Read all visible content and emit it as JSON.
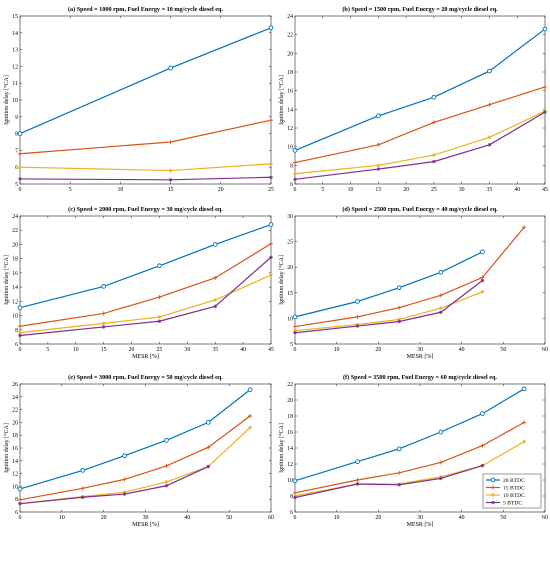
{
  "colors": {
    "20 BTDC": "#0072BD",
    "15 BTDC": "#D95319",
    "10 BTDC": "#EDB120",
    "5 BTDC": "#7E2F8E"
  },
  "legend": {
    "placement": "bottom-right of panel (f)",
    "entries": [
      "20 BTDC",
      "15 BTDC",
      "10 BTDC",
      "5 BTDC"
    ]
  },
  "chart_data": [
    {
      "type": "line",
      "title": "(a) Speed = 1000 rpm, Fuel Energy = 10 mg/cycle diesel eq.",
      "xlabel": "",
      "ylabel": "Ignition delay [°CA]",
      "xlim": [
        0,
        25
      ],
      "ylim": [
        5,
        15
      ],
      "xticks": [
        0,
        5,
        10,
        15,
        20,
        25
      ],
      "yticks": [
        5,
        6,
        7,
        8,
        9,
        10,
        11,
        12,
        13,
        14,
        15
      ],
      "series": [
        {
          "name": "20 BTDC",
          "x": [
            0,
            15,
            25
          ],
          "y": [
            8.0,
            11.9,
            14.3
          ]
        },
        {
          "name": "15 BTDC",
          "x": [
            0,
            15,
            25
          ],
          "y": [
            6.8,
            7.5,
            8.8
          ]
        },
        {
          "name": "10 BTDC",
          "x": [
            0,
            15,
            25
          ],
          "y": [
            6.0,
            5.8,
            6.2
          ]
        },
        {
          "name": "5 BTDC",
          "x": [
            0,
            15,
            25
          ],
          "y": [
            5.3,
            5.25,
            5.4
          ]
        }
      ]
    },
    {
      "type": "line",
      "title": "(b) Speed = 1500 rpm, Fuel Energy = 20 mg/cycle diesel eq.",
      "xlabel": "",
      "ylabel": "Ignition delay [°CA]",
      "xlim": [
        0,
        45
      ],
      "ylim": [
        6,
        24
      ],
      "xticks": [
        0,
        5,
        10,
        15,
        20,
        25,
        30,
        35,
        40,
        45
      ],
      "yticks": [
        6,
        8,
        10,
        12,
        14,
        16,
        18,
        20,
        22,
        24
      ],
      "series": [
        {
          "name": "20 BTDC",
          "x": [
            0,
            15,
            25,
            35,
            45
          ],
          "y": [
            9.6,
            13.3,
            15.3,
            18.1,
            22.6
          ]
        },
        {
          "name": "15 BTDC",
          "x": [
            0,
            15,
            25,
            35,
            45
          ],
          "y": [
            8.3,
            10.2,
            12.6,
            14.5,
            16.4
          ]
        },
        {
          "name": "10 BTDC",
          "x": [
            0,
            15,
            25,
            35,
            45
          ],
          "y": [
            7.1,
            8.0,
            9.1,
            11.0,
            13.8
          ]
        },
        {
          "name": "5 BTDC",
          "x": [
            0,
            15,
            25,
            35,
            45
          ],
          "y": [
            6.5,
            7.6,
            8.4,
            10.2,
            13.7
          ]
        }
      ]
    },
    {
      "type": "line",
      "title": "(c) Speed = 2000 rpm, Fuel Energy = 30 mg/cycle diesel eq.",
      "xlabel": "MESR [%]",
      "ylabel": "Ignition delay [°CA]",
      "xlim": [
        0,
        45
      ],
      "ylim": [
        6,
        24
      ],
      "xticks": [
        0,
        5,
        10,
        15,
        20,
        25,
        30,
        35,
        40,
        45
      ],
      "yticks": [
        6,
        8,
        10,
        12,
        14,
        16,
        18,
        20,
        22,
        24
      ],
      "series": [
        {
          "name": "20 BTDC",
          "x": [
            0,
            15,
            25,
            35,
            45
          ],
          "y": [
            11.1,
            14.1,
            17.0,
            20.0,
            22.8
          ]
        },
        {
          "name": "15 BTDC",
          "x": [
            0,
            15,
            25,
            35,
            45
          ],
          "y": [
            8.5,
            10.3,
            12.6,
            15.3,
            20.1
          ]
        },
        {
          "name": "10 BTDC",
          "x": [
            0,
            15,
            25,
            35,
            45
          ],
          "y": [
            7.6,
            8.9,
            9.8,
            12.2,
            15.7
          ]
        },
        {
          "name": "5 BTDC",
          "x": [
            0,
            15,
            25,
            35,
            45
          ],
          "y": [
            7.2,
            8.4,
            9.2,
            11.3,
            18.2
          ]
        }
      ]
    },
    {
      "type": "line",
      "title": "(d) Speed = 2500 rpm, Fuel Energy = 40 mg/cycle diesel eq.",
      "xlabel": "MESR [%]",
      "ylabel": "Ignition delay [°CA]",
      "xlim": [
        0,
        60
      ],
      "ylim": [
        5,
        30
      ],
      "xticks": [
        0,
        10,
        20,
        30,
        40,
        50,
        60
      ],
      "yticks": [
        5,
        10,
        15,
        20,
        25,
        30
      ],
      "series": [
        {
          "name": "20 BTDC",
          "x": [
            0,
            15,
            25,
            35,
            45
          ],
          "y": [
            10.3,
            13.3,
            16.0,
            19.0,
            23.0
          ]
        },
        {
          "name": "15 BTDC",
          "x": [
            0,
            15,
            25,
            35,
            45,
            55
          ],
          "y": [
            8.4,
            10.3,
            12.1,
            14.5,
            18.0,
            27.8
          ]
        },
        {
          "name": "10 BTDC",
          "x": [
            0,
            15,
            25,
            35,
            45
          ],
          "y": [
            7.6,
            8.8,
            9.8,
            12.0,
            15.2
          ]
        },
        {
          "name": "5 BTDC",
          "x": [
            0,
            15,
            25,
            35,
            45
          ],
          "y": [
            7.2,
            8.5,
            9.4,
            11.2,
            17.4
          ]
        }
      ]
    },
    {
      "type": "line",
      "title": "(e) Speed = 3000 rpm, Fuel Energy = 50 mg/cycle diesel eq.",
      "xlabel": "MESR [%]",
      "ylabel": "Ignition delay [°CA]",
      "xlim": [
        0,
        60
      ],
      "ylim": [
        6,
        26
      ],
      "xticks": [
        0,
        10,
        20,
        30,
        40,
        50,
        60
      ],
      "yticks": [
        6,
        8,
        10,
        12,
        14,
        16,
        18,
        20,
        22,
        24,
        26
      ],
      "series": [
        {
          "name": "20 BTDC",
          "x": [
            0,
            15,
            25,
            35,
            45,
            55
          ],
          "y": [
            9.6,
            12.5,
            14.8,
            17.2,
            20.0,
            25.1
          ]
        },
        {
          "name": "15 BTDC",
          "x": [
            0,
            15,
            25,
            35,
            45,
            55
          ],
          "y": [
            7.9,
            9.7,
            11.1,
            13.2,
            16.1,
            21.0
          ]
        },
        {
          "name": "10 BTDC",
          "x": [
            0,
            15,
            25,
            35,
            45,
            55
          ],
          "y": [
            7.3,
            8.4,
            9.1,
            10.7,
            13.1,
            19.2
          ]
        },
        {
          "name": "5 BTDC",
          "x": [
            0,
            15,
            25,
            35,
            45
          ],
          "y": [
            7.3,
            8.3,
            8.8,
            10.1,
            13.1
          ]
        }
      ]
    },
    {
      "type": "line",
      "title": "(f) Speed = 3500 rpm, Fuel Energy = 60 mg/cycle diesel eq.",
      "xlabel": "MESR [%]",
      "ylabel": "Ignition delay [°CA]",
      "xlim": [
        0,
        60
      ],
      "ylim": [
        6,
        22
      ],
      "xticks": [
        0,
        10,
        20,
        30,
        40,
        50,
        60
      ],
      "yticks": [
        6,
        8,
        10,
        12,
        14,
        16,
        18,
        20,
        22
      ],
      "series": [
        {
          "name": "20 BTDC",
          "x": [
            0,
            15,
            25,
            35,
            45,
            55
          ],
          "y": [
            9.9,
            12.3,
            13.9,
            16.0,
            18.3,
            21.4
          ]
        },
        {
          "name": "15 BTDC",
          "x": [
            0,
            15,
            25,
            35,
            45,
            55
          ],
          "y": [
            8.4,
            10.0,
            10.9,
            12.2,
            14.3,
            17.2
          ]
        },
        {
          "name": "10 BTDC",
          "x": [
            0,
            15,
            25,
            35,
            45,
            55
          ],
          "y": [
            8.0,
            9.5,
            9.5,
            10.4,
            11.8,
            14.8
          ]
        },
        {
          "name": "5 BTDC",
          "x": [
            0,
            15,
            25,
            35,
            45
          ],
          "y": [
            7.8,
            9.5,
            9.4,
            10.2,
            11.8
          ]
        }
      ]
    }
  ]
}
